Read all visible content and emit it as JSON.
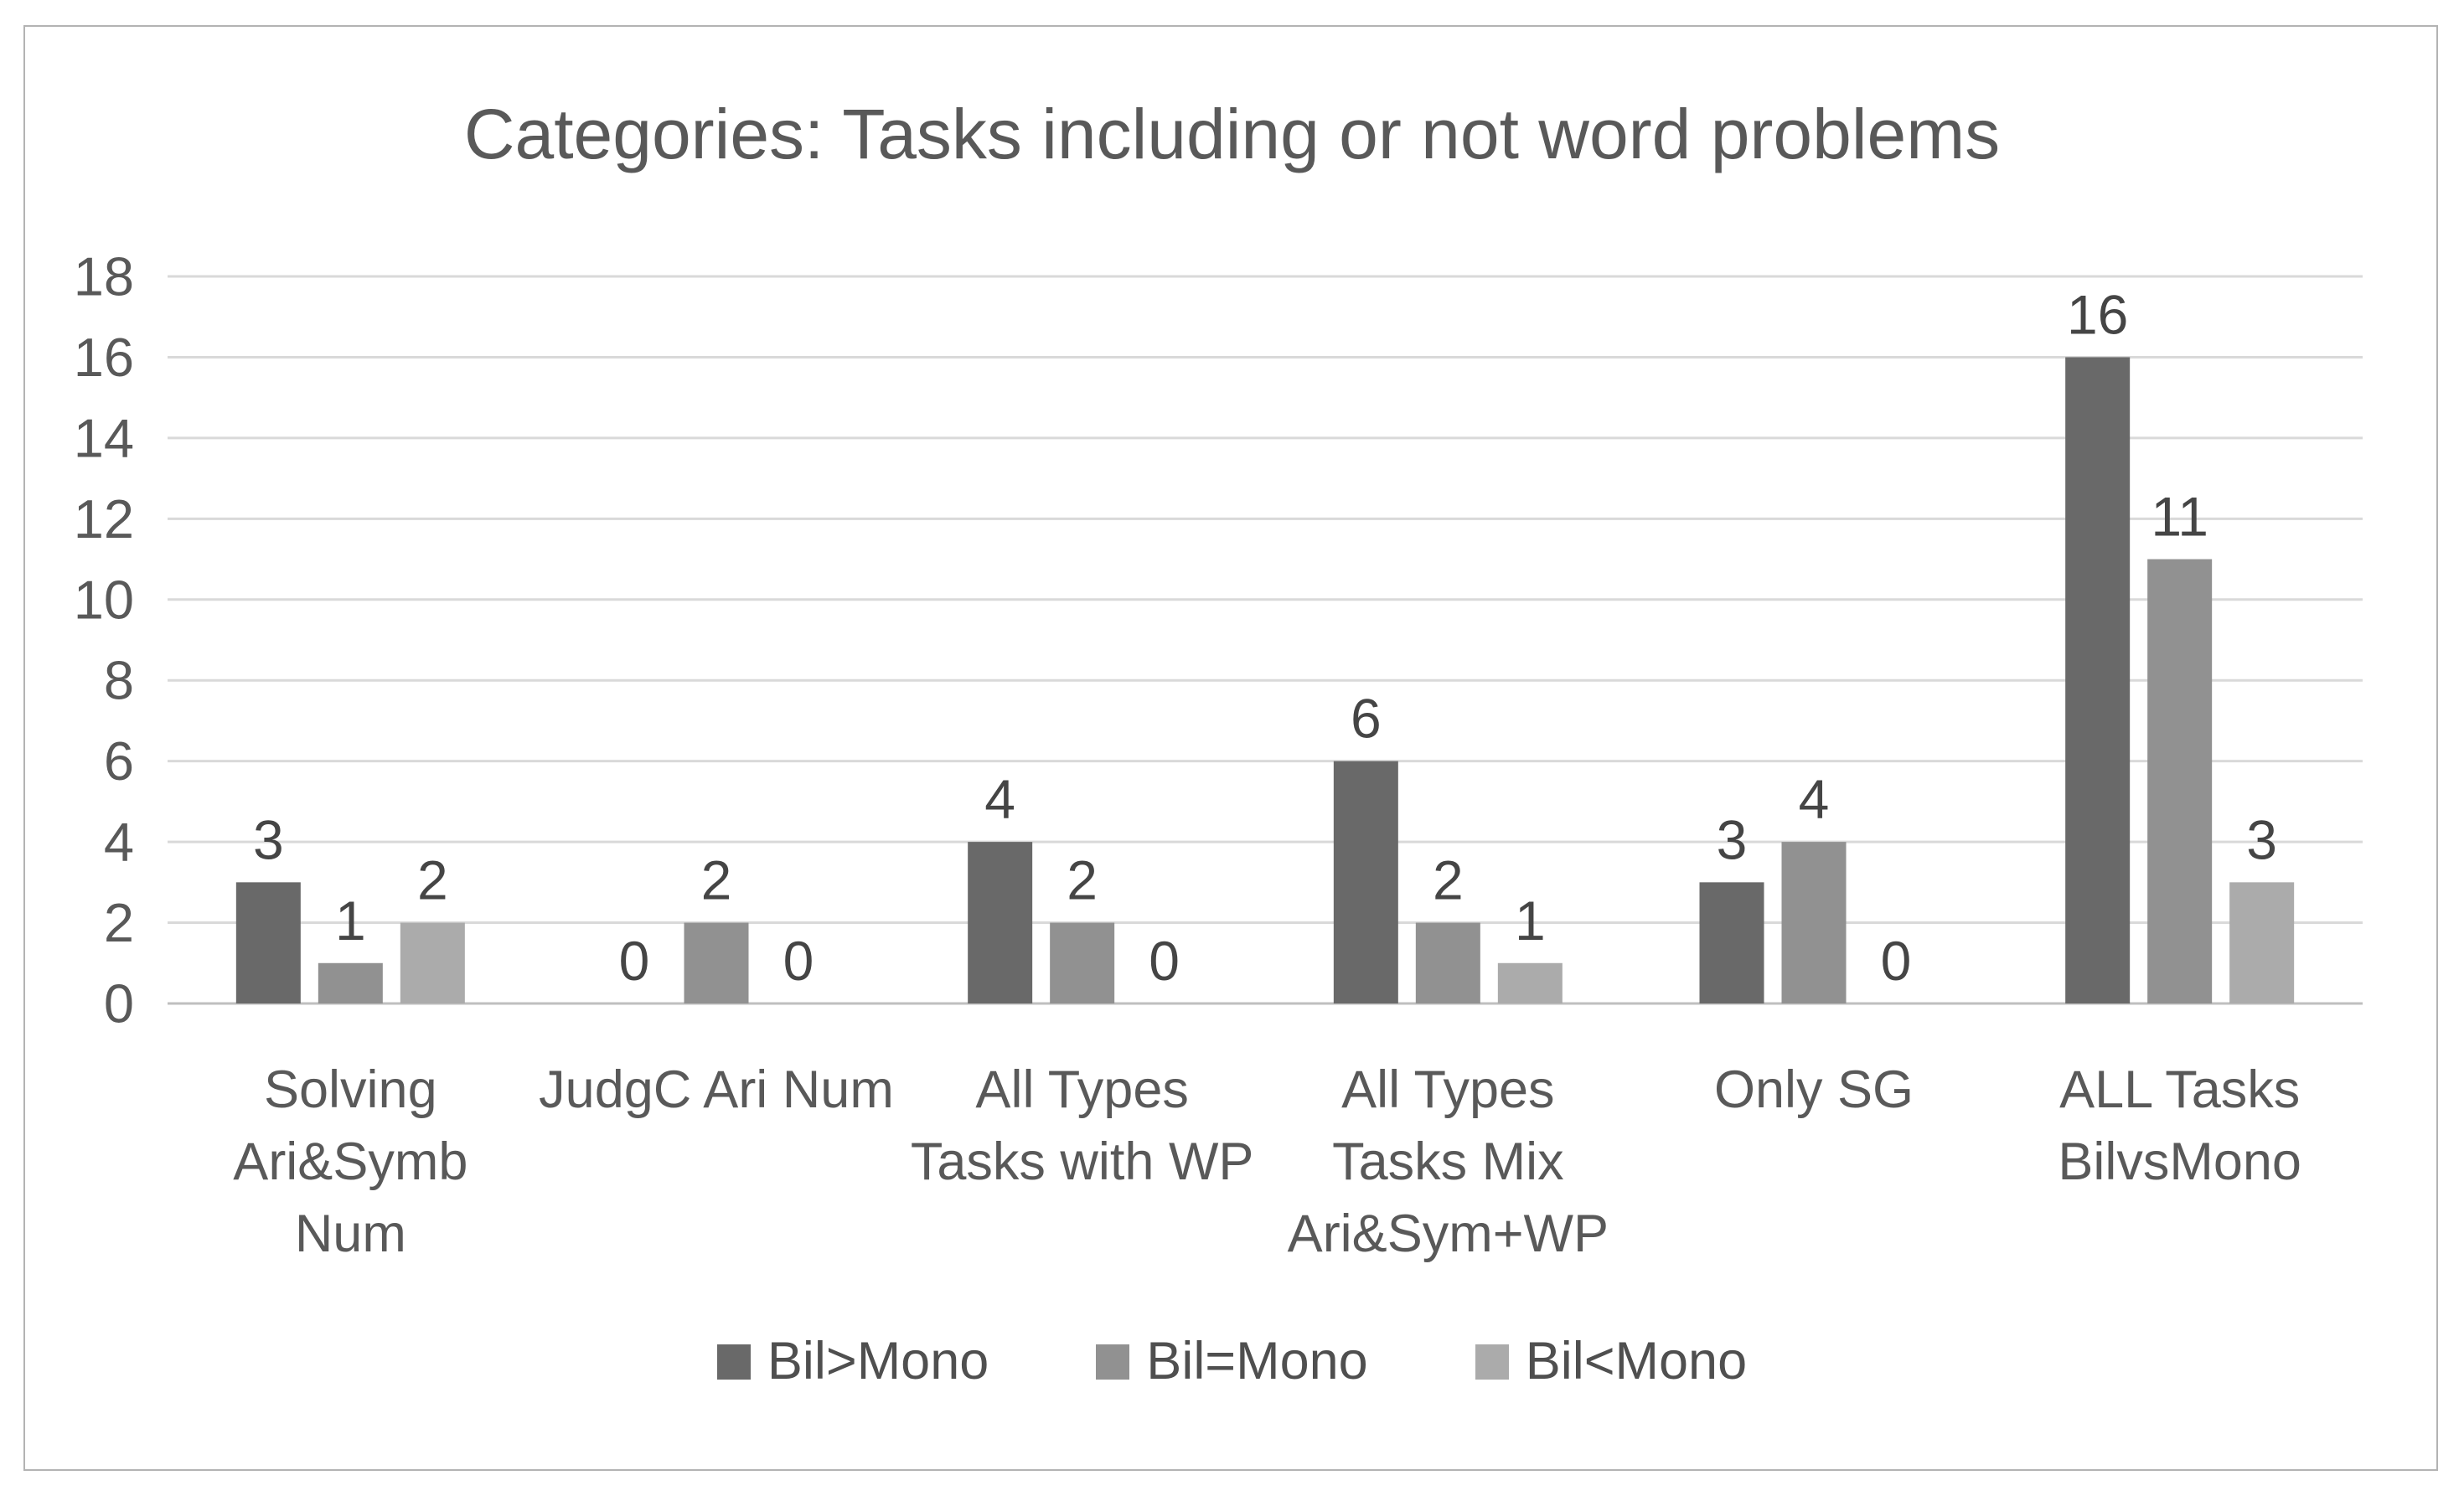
{
  "chart_data": {
    "type": "bar",
    "title": "Categories: Tasks including or not word problems",
    "categories": [
      "Solving Ari&Symb Num",
      "JudgC Ari Num",
      "All Types Tasks with WP",
      "All Types Tasks Mix Ari&Sym+WP",
      "Only SG",
      "ALL Tasks BilvsMono"
    ],
    "category_display_lines": [
      [
        "Solving",
        "Ari&Symb",
        "Num"
      ],
      [
        "JudgC Ari Num"
      ],
      [
        "All Types",
        "Tasks with WP"
      ],
      [
        "All Types",
        "Tasks Mix",
        "Ari&Sym+WP"
      ],
      [
        "Only SG"
      ],
      [
        "ALL Tasks",
        "BilvsMono"
      ]
    ],
    "series": [
      {
        "name": "Bil>Mono",
        "color": "#696969",
        "values": [
          3,
          0,
          4,
          6,
          3,
          16
        ]
      },
      {
        "name": "Bil=Mono",
        "color": "#919191",
        "values": [
          1,
          2,
          2,
          2,
          4,
          11
        ]
      },
      {
        "name": "Bil<Mono",
        "color": "#ababab",
        "values": [
          2,
          0,
          0,
          1,
          0,
          3
        ]
      }
    ],
    "y_axis": {
      "min": 0,
      "max": 18,
      "step": 2,
      "tick_labels": [
        "0",
        "2",
        "4",
        "6",
        "8",
        "10",
        "12",
        "14",
        "16",
        "18"
      ]
    },
    "data_labels_shown": true,
    "grid": true,
    "legend_position": "bottom"
  },
  "style_colors": {
    "gridline": "#d9d9d9",
    "baseline": "#bfbfbf",
    "axis_text": "#595959",
    "category_text": "#595959",
    "value_label_text": "#454545",
    "title_text": "#595959",
    "frame_border": "#b3b3b3"
  }
}
